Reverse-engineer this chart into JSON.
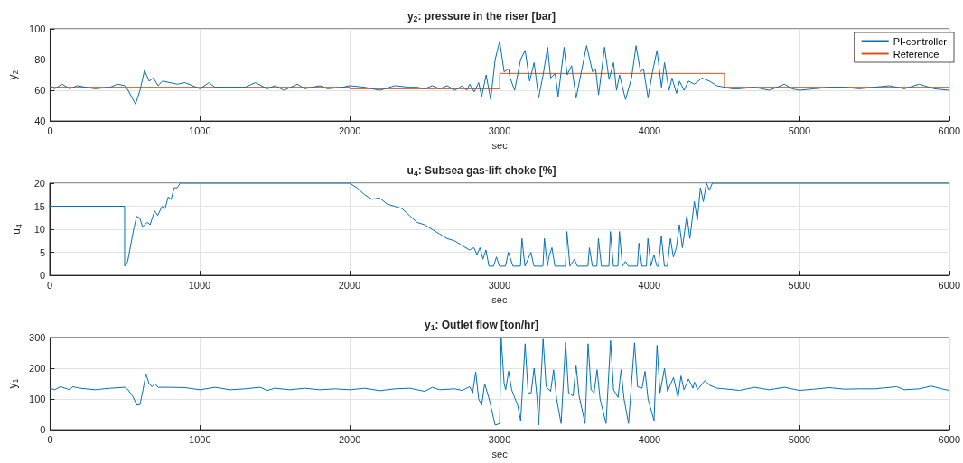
{
  "chart_data": [
    {
      "type": "line",
      "title": "y$_{2}$: pressure in the riser [bar]",
      "xlabel": "sec",
      "ylabel": "y$_{2}$",
      "xlim": [
        0,
        6000
      ],
      "xticks": [
        0,
        1000,
        2000,
        3000,
        4000,
        5000,
        6000
      ],
      "ylim": [
        40,
        100
      ],
      "yticks": [
        40,
        60,
        80,
        100
      ],
      "grid": true,
      "legend": "top right",
      "marker": "none",
      "line_style": "solid",
      "series": [
        {
          "name": "PI-controller",
          "color": "#0072bd",
          "x": [
            0,
            30,
            80,
            130,
            180,
            300,
            400,
            450,
            500,
            520,
            570,
            600,
            630,
            660,
            690,
            720,
            750,
            850,
            900,
            1000,
            1060,
            1100,
            1200,
            1300,
            1370,
            1450,
            1500,
            1560,
            1650,
            1700,
            1800,
            1850,
            1950,
            2000,
            2100,
            2200,
            2300,
            2400,
            2450,
            2500,
            2550,
            2600,
            2650,
            2700,
            2750,
            2780,
            2800,
            2830,
            2860,
            2880,
            2910,
            2940,
            2970,
            3000,
            3030,
            3060,
            3070,
            3100,
            3140,
            3170,
            3200,
            3230,
            3260,
            3290,
            3320,
            3340,
            3370,
            3390,
            3430,
            3450,
            3480,
            3510,
            3580,
            3620,
            3640,
            3660,
            3700,
            3730,
            3760,
            3780,
            3800,
            3840,
            3880,
            3910,
            3940,
            3960,
            3990,
            4020,
            4050,
            4080,
            4100,
            4130,
            4150,
            4180,
            4200,
            4230,
            4260,
            4300,
            4350,
            4400,
            4450,
            4500,
            4550,
            4600,
            4700,
            4800,
            4900,
            4950,
            5000,
            5100,
            5200,
            5300,
            5400,
            5600,
            5700,
            5800,
            5900,
            6000
          ],
          "values": [
            63,
            61,
            64,
            61,
            63,
            61,
            62,
            64,
            63,
            60,
            51,
            60,
            73,
            66,
            68,
            63,
            66,
            64,
            65,
            61,
            65,
            62,
            62,
            62,
            65,
            61,
            63,
            60,
            64,
            61,
            63,
            61,
            62,
            63,
            62,
            60,
            63,
            62,
            62,
            61,
            63,
            61,
            63,
            60,
            63,
            60,
            64,
            59,
            65,
            56,
            70,
            54,
            80,
            92,
            72,
            74,
            68,
            60,
            80,
            86,
            66,
            78,
            55,
            70,
            88,
            68,
            71,
            56,
            88,
            70,
            76,
            55,
            89,
            72,
            74,
            57,
            88,
            67,
            78,
            60,
            70,
            54,
            68,
            89,
            72,
            74,
            55,
            72,
            86,
            62,
            78,
            60,
            68,
            58,
            66,
            60,
            66,
            64,
            68,
            66,
            63,
            62,
            61,
            61,
            62,
            60,
            64,
            61,
            60,
            61,
            62,
            62,
            61,
            63,
            61,
            64,
            61,
            60
          ]
        },
        {
          "name": "Reference",
          "color": "#d95319",
          "x": [
            0,
            2000,
            2000,
            3000,
            3000,
            4500,
            4500,
            6000
          ],
          "values": [
            62,
            62,
            61,
            61,
            71,
            71,
            62,
            62
          ]
        }
      ]
    },
    {
      "type": "line",
      "title": "u$_{4}$: Subsea gas-lift choke [%]",
      "xlabel": "sec",
      "ylabel": "u$_{4}$",
      "xlim": [
        0,
        6000
      ],
      "xticks": [
        0,
        1000,
        2000,
        3000,
        4000,
        5000,
        6000
      ],
      "ylim": [
        0,
        20
      ],
      "yticks": [
        0,
        5,
        10,
        15,
        20
      ],
      "grid": true,
      "marker": "none",
      "line_style": "solid",
      "series": [
        {
          "color": "#0072bd",
          "x": [
            0,
            500,
            500,
            520,
            560,
            580,
            600,
            620,
            650,
            670,
            700,
            720,
            750,
            770,
            790,
            810,
            830,
            850,
            870,
            2000,
            2050,
            2100,
            2150,
            2200,
            2250,
            2300,
            2350,
            2400,
            2450,
            2500,
            2550,
            2600,
            2650,
            2700,
            2750,
            2800,
            2830,
            2850,
            2870,
            2890,
            2910,
            2930,
            2960,
            2980,
            3000,
            3040,
            3060,
            3090,
            3140,
            3150,
            3170,
            3190,
            3210,
            3230,
            3290,
            3300,
            3320,
            3330,
            3350,
            3370,
            3440,
            3450,
            3470,
            3500,
            3520,
            3590,
            3600,
            3620,
            3650,
            3660,
            3680,
            3730,
            3740,
            3760,
            3790,
            3800,
            3820,
            3840,
            3860,
            3920,
            3930,
            3950,
            3980,
            3990,
            4010,
            4030,
            4050,
            4060,
            4080,
            4100,
            4120,
            4140,
            4160,
            4180,
            4200,
            4220,
            4250,
            4270,
            4300,
            4320,
            4340,
            4360,
            4380,
            4400,
            4420,
            6000
          ],
          "values": [
            15,
            15,
            2,
            3,
            10,
            12.8,
            12.5,
            10.5,
            11.5,
            11,
            14,
            13,
            15,
            14.5,
            17,
            16.5,
            19,
            19,
            20,
            20,
            19,
            17.5,
            16.5,
            16.8,
            15.5,
            15,
            14.5,
            13,
            11.5,
            11,
            10,
            9,
            8,
            7.5,
            6.5,
            5.5,
            6,
            4.5,
            6,
            3.5,
            5.5,
            2,
            2,
            4,
            2,
            2,
            5,
            2,
            2,
            8,
            2,
            3.5,
            5,
            2,
            2,
            8,
            2,
            4,
            6,
            2,
            2,
            9.5,
            2,
            3.5,
            2,
            2,
            6,
            2,
            2,
            8,
            2,
            2,
            9.5,
            2,
            2,
            9.5,
            2,
            3,
            2,
            2,
            7,
            2,
            2,
            8,
            2,
            4.5,
            2,
            2,
            8.5,
            2,
            2,
            8,
            4,
            6,
            11,
            6,
            13,
            8,
            16,
            12,
            19,
            16,
            20,
            18.5,
            20,
            20
          ]
        }
      ]
    },
    {
      "type": "line",
      "title": "y$_{1}$: Outlet flow [ton/hr]",
      "xlabel": "sec",
      "ylabel": "y$_{1}$",
      "xlim": [
        0,
        6000
      ],
      "xticks": [
        0,
        1000,
        2000,
        3000,
        4000,
        5000,
        6000
      ],
      "ylim": [
        0,
        300
      ],
      "yticks": [
        0,
        100,
        200,
        300
      ],
      "grid": true,
      "marker": "none",
      "line_style": "solid",
      "series": [
        {
          "color": "#0072bd",
          "x": [
            0,
            30,
            70,
            130,
            150,
            200,
            300,
            400,
            500,
            520,
            550,
            580,
            600,
            620,
            640,
            660,
            680,
            700,
            720,
            800,
            900,
            1000,
            1100,
            1200,
            1300,
            1400,
            1450,
            1500,
            1600,
            1700,
            1800,
            1900,
            2000,
            2100,
            2200,
            2300,
            2400,
            2450,
            2500,
            2550,
            2600,
            2700,
            2750,
            2800,
            2820,
            2840,
            2860,
            2880,
            2900,
            2930,
            2970,
            3000,
            3010,
            3030,
            3040,
            3060,
            3080,
            3120,
            3140,
            3170,
            3190,
            3210,
            3230,
            3250,
            3260,
            3290,
            3310,
            3340,
            3360,
            3380,
            3410,
            3440,
            3460,
            3490,
            3510,
            3530,
            3570,
            3590,
            3610,
            3630,
            3650,
            3670,
            3710,
            3740,
            3760,
            3790,
            3810,
            3830,
            3860,
            3900,
            3920,
            3950,
            3970,
            3990,
            4030,
            4050,
            4070,
            4100,
            4120,
            4160,
            4190,
            4210,
            4230,
            4260,
            4290,
            4300,
            4320,
            4370,
            4400,
            4450,
            4500,
            4600,
            4700,
            4800,
            4900,
            5000,
            5100,
            5200,
            5300,
            5400,
            5500,
            5650,
            5700,
            5800,
            5880,
            5950,
            6000
          ],
          "values": [
            135,
            130,
            140,
            130,
            140,
            135,
            130,
            135,
            138,
            130,
            110,
            80,
            82,
            130,
            182,
            150,
            140,
            150,
            138,
            138,
            137,
            130,
            138,
            130,
            133,
            138,
            128,
            135,
            130,
            135,
            130,
            133,
            130,
            135,
            127,
            133,
            135,
            130,
            125,
            138,
            130,
            133,
            128,
            140,
            120,
            188,
            100,
            80,
            150,
            100,
            15,
            20,
            300,
            150,
            130,
            190,
            130,
            80,
            30,
            280,
            120,
            120,
            200,
            100,
            15,
            295,
            140,
            125,
            195,
            100,
            20,
            285,
            120,
            110,
            210,
            110,
            20,
            280,
            130,
            120,
            195,
            100,
            20,
            290,
            130,
            105,
            195,
            100,
            20,
            283,
            140,
            135,
            190,
            100,
            30,
            275,
            120,
            200,
            125,
            170,
            105,
            175,
            130,
            165,
            135,
            155,
            130,
            160,
            145,
            135,
            133,
            128,
            138,
            130,
            138,
            128,
            132,
            137,
            132,
            133,
            133,
            140,
            130,
            133,
            142,
            133,
            128
          ]
        }
      ]
    }
  ]
}
